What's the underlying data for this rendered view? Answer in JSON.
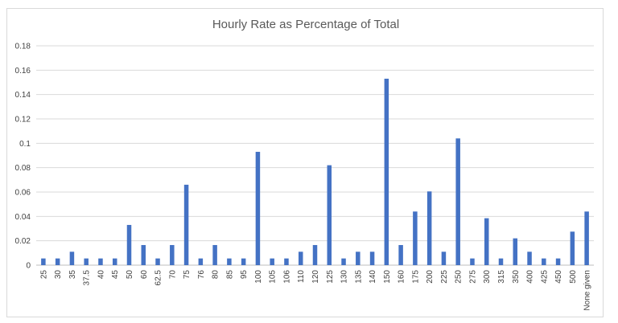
{
  "chart_data": {
    "type": "bar",
    "title": "Hourly Rate as Percentage of Total",
    "xlabel": "",
    "ylabel": "",
    "ylim": [
      0,
      0.18
    ],
    "yticks": [
      "0",
      "0.02",
      "0.04",
      "0.06",
      "0.08",
      "0.1",
      "0.12",
      "0.14",
      "0.16",
      "0.18"
    ],
    "grid": true,
    "legend": "none",
    "bar_color": "#4472c4",
    "categories": [
      "25",
      "30",
      "35",
      "37.5",
      "40",
      "45",
      "50",
      "60",
      "62.5",
      "70",
      "75",
      "76",
      "80",
      "85",
      "95",
      "100",
      "105",
      "106",
      "110",
      "120",
      "125",
      "130",
      "135",
      "140",
      "150",
      "160",
      "175",
      "200",
      "225",
      "250",
      "275",
      "300",
      "315",
      "350",
      "400",
      "425",
      "450",
      "500",
      "None given"
    ],
    "values": [
      0.0055,
      0.0055,
      0.011,
      0.0055,
      0.0055,
      0.0055,
      0.033,
      0.0165,
      0.0055,
      0.0165,
      0.066,
      0.0055,
      0.0165,
      0.0055,
      0.0055,
      0.093,
      0.0055,
      0.0055,
      0.011,
      0.0165,
      0.082,
      0.0055,
      0.011,
      0.011,
      0.153,
      0.0165,
      0.044,
      0.0605,
      0.011,
      0.104,
      0.0055,
      0.0385,
      0.0055,
      0.022,
      0.011,
      0.0055,
      0.0055,
      0.0275,
      0.044
    ]
  }
}
